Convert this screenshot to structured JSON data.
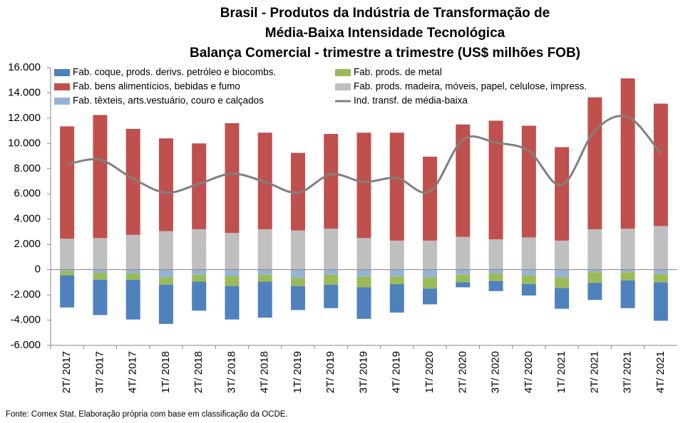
{
  "chart_data": {
    "type": "bar",
    "title": [
      "Brasil - Produtos da Indústria de Transformação de",
      "Média-Baixa Intensidade Tecnológica",
      "Balança Comercial - trimestre a trimestre (US$ milhões FOB)"
    ],
    "source": "Fonte: Comex Stat. Elaboração própria com base em classificação da OCDE.",
    "stacked": true,
    "categories": [
      "2T/ 2017",
      "3T/ 2017",
      "4T/ 2017",
      "1T/ 2018",
      "2T/ 2018",
      "3T/ 2018",
      "4T/ 2018",
      "1T/ 2019",
      "2T/ 2019",
      "3T/ 2019",
      "4T/ 2019",
      "1T/ 2020",
      "2T/ 2020",
      "3T/ 2020",
      "4T/ 2020",
      "1T/ 2021",
      "2T/ 2021",
      "3T/ 2021",
      "4T/ 2021"
    ],
    "series": [
      {
        "name": "Fab. coque, prods. derivs. petróleo e biocombs.",
        "color": "#4f81bd",
        "values": [
          -2550,
          -2800,
          -3150,
          -3100,
          -2300,
          -2650,
          -2850,
          -1900,
          -1850,
          -2500,
          -2250,
          -1250,
          -400,
          -800,
          -900,
          -1650,
          -1350,
          -2200,
          -3050
        ]
      },
      {
        "name": "Fab. prods. de metal",
        "color": "#9bbb59",
        "values": [
          -350,
          -550,
          -500,
          -600,
          -550,
          -800,
          -550,
          -650,
          -800,
          -850,
          -600,
          -900,
          -600,
          -600,
          -700,
          -850,
          -850,
          -650,
          -650
        ]
      },
      {
        "name": "Fab. bens alimentícios, bebidas e fumo",
        "color": "#c0504d",
        "values": [
          8900,
          9750,
          8400,
          7350,
          6800,
          8700,
          7650,
          6150,
          7500,
          8350,
          8550,
          6650,
          8900,
          9400,
          8850,
          7400,
          10450,
          11900,
          9700
        ]
      },
      {
        "name": "Fab. prods. madeira, móveis, papel, celulose, impress.",
        "color": "#bfbfbf",
        "values": [
          2450,
          2500,
          2750,
          3050,
          3200,
          2900,
          3200,
          3100,
          3250,
          2500,
          2300,
          2300,
          2600,
          2400,
          2550,
          2300,
          3200,
          3250,
          3450
        ]
      },
      {
        "name": "Fab. têxteis, arts.vestuário, couro e calçados",
        "color": "#95b3d7",
        "values": [
          -100,
          -250,
          -300,
          -600,
          -400,
          -500,
          -400,
          -650,
          -400,
          -550,
          -550,
          -600,
          -400,
          -300,
          -450,
          -600,
          -200,
          -200,
          -350
        ]
      },
      {
        "name": "Ind. transf. de média-baixa",
        "color": "#808080",
        "type": "line",
        "values": [
          8350,
          8700,
          7200,
          6100,
          6800,
          7600,
          6950,
          6100,
          7550,
          6950,
          7250,
          6200,
          10300,
          10050,
          9400,
          6700,
          11000,
          12100,
          9200
        ]
      }
    ],
    "ylim": [
      -6000,
      16000
    ],
    "yticks": [
      {
        "value": -6000,
        "label": "-6.000"
      },
      {
        "value": -4000,
        "label": "-4.000"
      },
      {
        "value": -2000,
        "label": "-2.000"
      },
      0,
      {
        "value": 2000,
        "label": "2.000"
      },
      {
        "value": 4000,
        "label": "4.000"
      },
      {
        "value": 6000,
        "label": "6.000"
      },
      {
        "value": 8000,
        "label": "8.000"
      },
      {
        "value": 10000,
        "label": "10.000"
      },
      {
        "value": 12000,
        "label": "12.000"
      },
      {
        "value": 14000,
        "label": "14.000"
      },
      {
        "value": 16000,
        "label": "16.000"
      }
    ],
    "grid": false
  }
}
